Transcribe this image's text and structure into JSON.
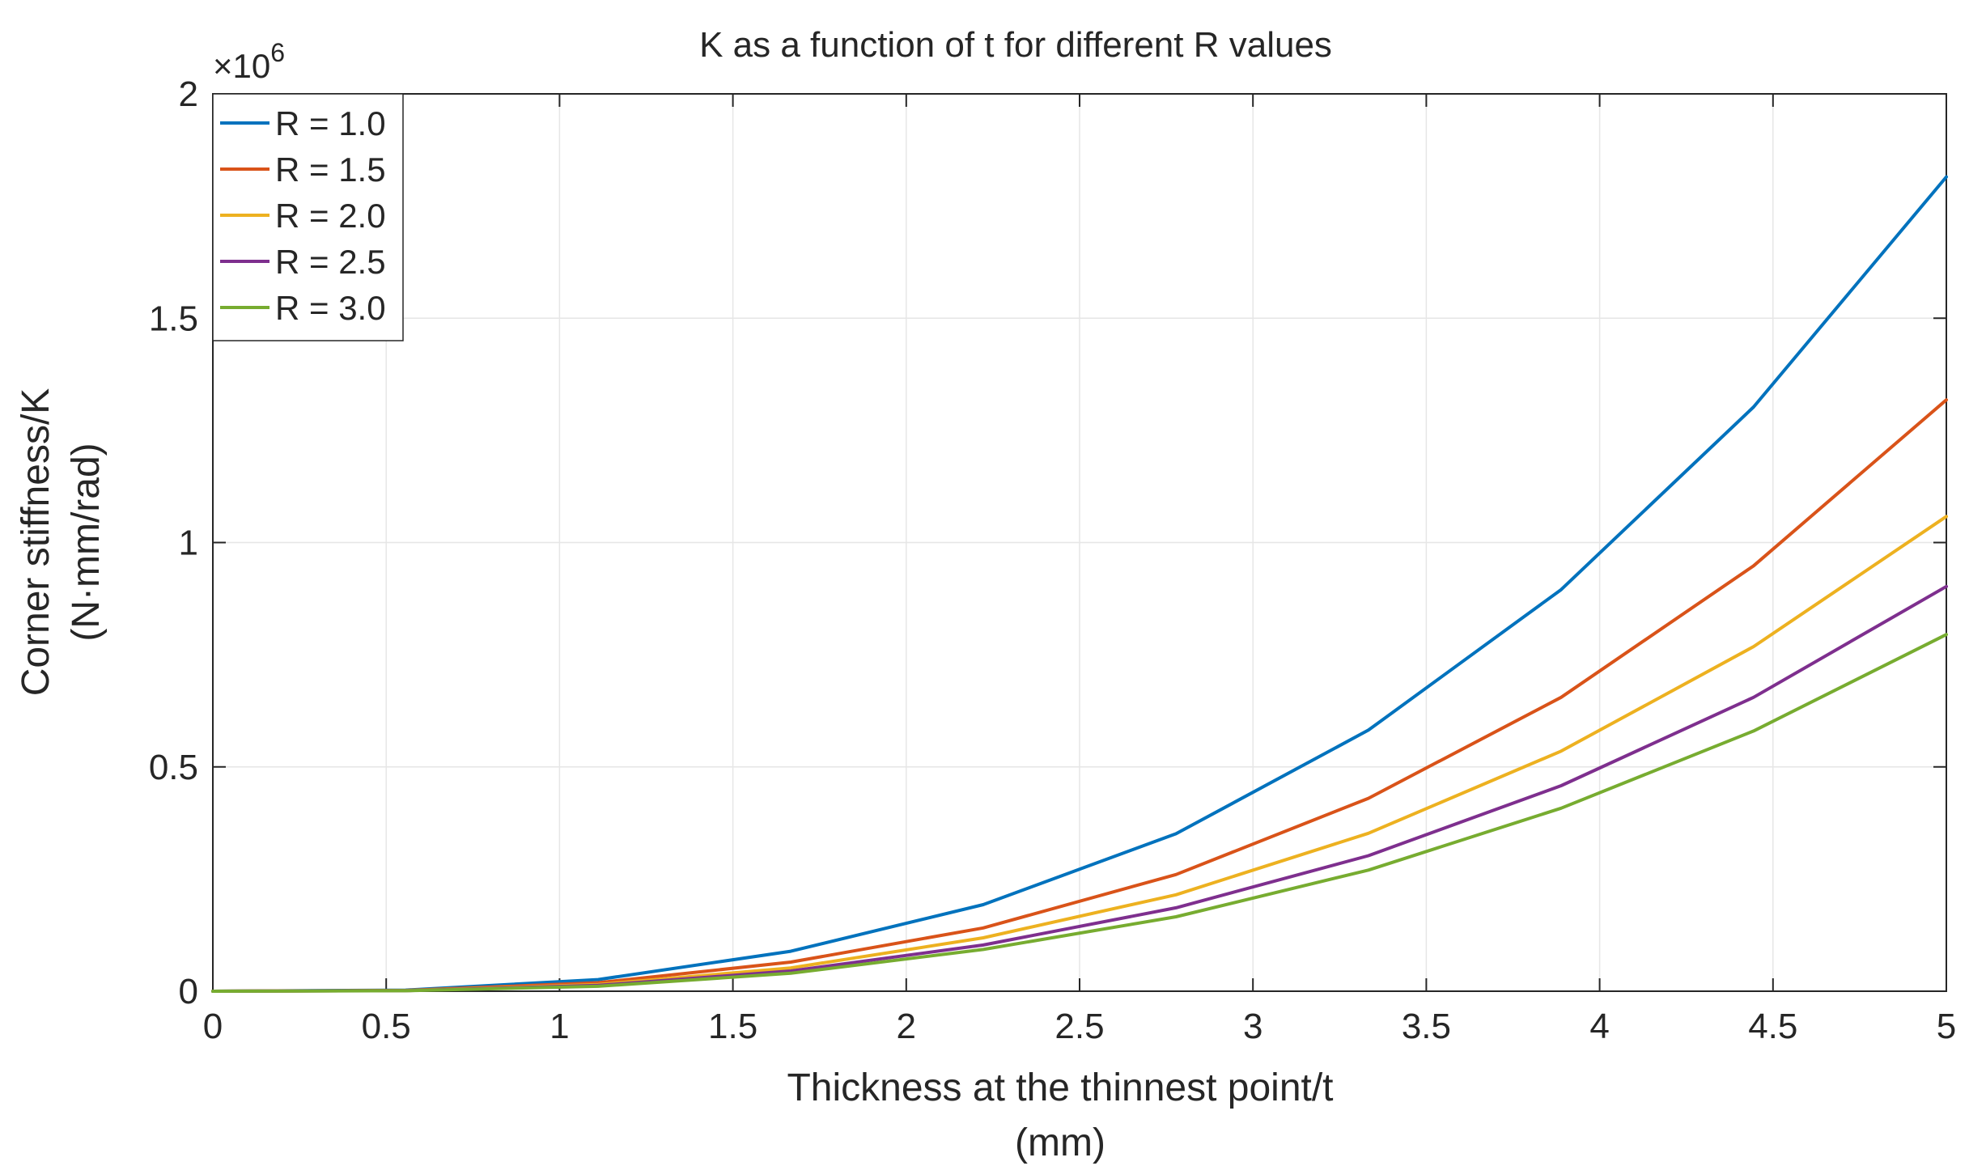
{
  "chart_data": {
    "type": "line",
    "title": "K as a function of t for different R values",
    "xlabel_line1": "Thickness at the thinnest point/t",
    "xlabel_line2": "(mm)",
    "ylabel_line1": "Corner stiffness/K",
    "ylabel_line2": "(N·mm/rad)",
    "y_exponent_base": "×10",
    "y_exponent_power": "6",
    "xlim": [
      0,
      5
    ],
    "ylim": [
      0,
      2
    ],
    "x_ticks": [
      0,
      0.5,
      1,
      1.5,
      2,
      2.5,
      3,
      3.5,
      4,
      4.5,
      5
    ],
    "x_tick_labels": [
      "0",
      "0.5",
      "1",
      "1.5",
      "2",
      "2.5",
      "3",
      "3.5",
      "4",
      "4.5",
      "5"
    ],
    "y_ticks": [
      0,
      0.5,
      1,
      1.5,
      2
    ],
    "y_tick_labels": [
      "0",
      "0.5",
      "1",
      "1.5",
      "2"
    ],
    "grid": true,
    "legend_position": "top-left",
    "x": [
      0,
      0.556,
      1.111,
      1.667,
      2.222,
      2.778,
      3.333,
      3.889,
      4.444,
      5.0
    ],
    "series": [
      {
        "name": "R = 1.0",
        "color": "#0072BD",
        "values": [
          0,
          0.0025,
          0.026,
          0.089,
          0.193,
          0.351,
          0.582,
          0.895,
          1.302,
          1.815
        ]
      },
      {
        "name": "R = 1.5",
        "color": "#D95319",
        "values": [
          0,
          0.0018,
          0.019,
          0.065,
          0.141,
          0.26,
          0.43,
          0.655,
          0.948,
          1.318
        ]
      },
      {
        "name": "R = 2.0",
        "color": "#EDB120",
        "values": [
          0,
          0.0015,
          0.015,
          0.052,
          0.119,
          0.215,
          0.352,
          0.535,
          0.768,
          1.058
        ]
      },
      {
        "name": "R = 2.5",
        "color": "#7E2F8E",
        "values": [
          0,
          0.0012,
          0.013,
          0.045,
          0.103,
          0.186,
          0.302,
          0.458,
          0.655,
          0.902
        ]
      },
      {
        "name": "R = 3.0",
        "color": "#77AC30",
        "values": [
          0,
          0.001,
          0.011,
          0.04,
          0.093,
          0.166,
          0.27,
          0.408,
          0.58,
          0.795
        ]
      }
    ]
  }
}
